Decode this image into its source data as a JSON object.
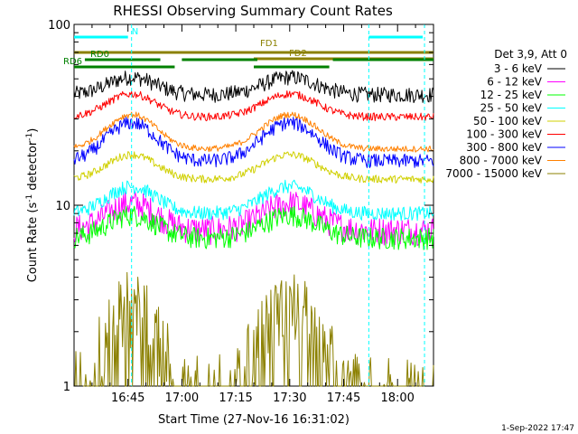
{
  "chart_data": {
    "type": "line",
    "title": "RHESSI Observing Summary Count Rates",
    "xlabel": "Start Time (27-Nov-16 16:31:02)",
    "ylabel_main": "Count Rate (s",
    "ylabel_unit": "detector",
    "ylabel_close": ")",
    "y_scale": "log",
    "ylim": [
      1,
      100
    ],
    "xlim_minutes": [
      0,
      100
    ],
    "x_ticks": [
      "16:45",
      "17:00",
      "17:15",
      "17:30",
      "17:45",
      "18:00"
    ],
    "y_ticks": [
      "100",
      "10",
      "1"
    ],
    "legend_header": "Det 3,9, Att 0",
    "legend_position": "right",
    "series": [
      {
        "name": "3 - 6 keV",
        "color": "#000000",
        "base": 46,
        "amp": 0.22,
        "noise": 0.1,
        "shape": "low"
      },
      {
        "name": "6 - 12 keV",
        "color": "#ff00ff",
        "base": 8.5,
        "amp": 0.35,
        "noise": 0.18,
        "shape": "orbit"
      },
      {
        "name": "12 - 25 keV",
        "color": "#00ff00",
        "base": 7.5,
        "amp": 0.3,
        "noise": 0.14,
        "shape": "orbit"
      },
      {
        "name": "25 - 50 keV",
        "color": "#00ffff",
        "base": 10.5,
        "amp": 0.35,
        "noise": 0.09,
        "shape": "orbit"
      },
      {
        "name": "50 - 100 keV",
        "color": "#d0d000",
        "base": 16,
        "amp": 0.32,
        "noise": 0.05,
        "shape": "orbit"
      },
      {
        "name": "100 - 300 keV",
        "color": "#ff0000",
        "base": 35,
        "amp": 0.3,
        "noise": 0.05,
        "shape": "orbit"
      },
      {
        "name": "300 - 800 keV",
        "color": "#0000ff",
        "base": 22,
        "amp": 0.5,
        "noise": 0.09,
        "shape": "orbit"
      },
      {
        "name": "800 - 7000 keV",
        "color": "#ff8000",
        "base": 25,
        "amp": 0.45,
        "noise": 0.04,
        "shape": "orbit"
      },
      {
        "name": "7000 - 15000 keV",
        "color": "#8b8000",
        "base": 1.6,
        "amp": 0.8,
        "noise": 0.5,
        "shape": "sparse"
      }
    ],
    "segments": [
      {
        "label": "N",
        "color": "#00ffff",
        "rows": "upper",
        "spans": [
          [
            0,
            15
          ],
          [
            82,
            97
          ]
        ]
      },
      {
        "label": "FD1",
        "color": "#8b8000",
        "rows": "mid",
        "spans": [
          [
            0,
            100
          ]
        ]
      },
      {
        "label": "FD2",
        "color": "#8b8000",
        "rows": "mid2",
        "spans": [
          [
            50,
            100
          ]
        ]
      },
      {
        "label": "RD0",
        "color": "#008000",
        "rows": "row3",
        "spans": [
          [
            3,
            24
          ],
          [
            30,
            51
          ],
          [
            72,
            100
          ]
        ]
      },
      {
        "label": "RD6",
        "color": "#008000",
        "rows": "row4",
        "spans": [
          [
            0,
            28
          ],
          [
            50,
            71
          ]
        ]
      }
    ],
    "vertical_markers": [
      {
        "x": 16,
        "color": "#00ffff"
      },
      {
        "x": 82,
        "color": "#00ffff"
      },
      {
        "x": 97.5,
        "color": "#00ffff"
      }
    ]
  },
  "footer": {
    "date": "1-Sep-2022 17:47"
  }
}
